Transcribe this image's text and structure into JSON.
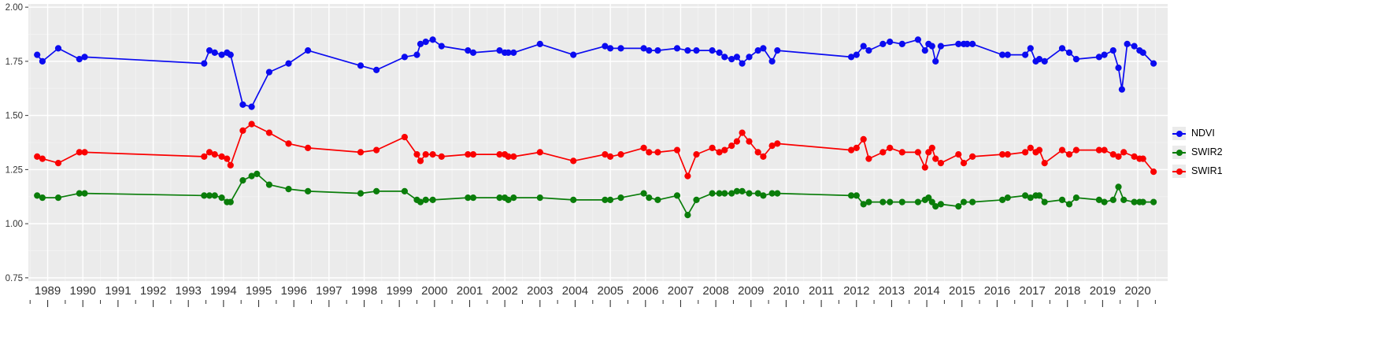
{
  "legend": {
    "entries": [
      {
        "label": "NDVI",
        "color": "#0b0bf0"
      },
      {
        "label": "SWIR2",
        "color": "#0a7d0a"
      },
      {
        "label": "SWIR1",
        "color": "#fa0000"
      }
    ]
  },
  "chart_data": {
    "type": "line",
    "title": "",
    "xlabel": "",
    "ylabel": "",
    "panel_bg": "#ebebeb",
    "grid_major_color": "#ffffff",
    "grid_minor_color": "#f4f4f4",
    "axis_text_color": "#333333",
    "tick_color": "#333333",
    "xlim": [
      1988.45,
      2020.85
    ],
    "ylim": [
      0.735,
      2.015
    ],
    "x_ticks": [
      1989,
      1990,
      1991,
      1992,
      1993,
      1994,
      1995,
      1996,
      1997,
      1998,
      1999,
      2000,
      2001,
      2002,
      2003,
      2004,
      2005,
      2006,
      2007,
      2008,
      2009,
      2010,
      2011,
      2012,
      2013,
      2014,
      2015,
      2016,
      2017,
      2018,
      2019,
      2020
    ],
    "y_ticks": {
      "values": [
        0.75,
        1.0,
        1.25,
        1.5,
        1.75,
        2.0
      ],
      "labels": [
        "0.75",
        "1.00",
        "1.25",
        "1.50",
        "1.75",
        "2.00"
      ]
    },
    "legend_position": "right",
    "series": [
      {
        "name": "NDVI",
        "color": "#0b0bf0",
        "points": [
          [
            1988.7,
            1.78
          ],
          [
            1988.85,
            1.75
          ],
          [
            1989.3,
            1.81
          ],
          [
            1989.9,
            1.76
          ],
          [
            1990.05,
            1.77
          ],
          [
            1993.45,
            1.74
          ],
          [
            1993.6,
            1.8
          ],
          [
            1993.75,
            1.79
          ],
          [
            1993.95,
            1.78
          ],
          [
            1994.1,
            1.79
          ],
          [
            1994.2,
            1.78
          ],
          [
            1994.55,
            1.55
          ],
          [
            1994.8,
            1.54
          ],
          [
            1995.3,
            1.7
          ],
          [
            1995.85,
            1.74
          ],
          [
            1996.4,
            1.8
          ],
          [
            1997.9,
            1.73
          ],
          [
            1998.35,
            1.71
          ],
          [
            1999.15,
            1.77
          ],
          [
            1999.5,
            1.78
          ],
          [
            1999.6,
            1.83
          ],
          [
            1999.75,
            1.84
          ],
          [
            1999.95,
            1.85
          ],
          [
            2000.2,
            1.82
          ],
          [
            2000.95,
            1.8
          ],
          [
            2001.1,
            1.79
          ],
          [
            2001.85,
            1.8
          ],
          [
            2002.0,
            1.79
          ],
          [
            2002.1,
            1.79
          ],
          [
            2002.25,
            1.79
          ],
          [
            2003.0,
            1.83
          ],
          [
            2003.95,
            1.78
          ],
          [
            2004.85,
            1.82
          ],
          [
            2005.0,
            1.81
          ],
          [
            2005.3,
            1.81
          ],
          [
            2005.95,
            1.81
          ],
          [
            2006.1,
            1.8
          ],
          [
            2006.35,
            1.8
          ],
          [
            2006.9,
            1.81
          ],
          [
            2007.2,
            1.8
          ],
          [
            2007.45,
            1.8
          ],
          [
            2007.9,
            1.8
          ],
          [
            2008.1,
            1.79
          ],
          [
            2008.25,
            1.77
          ],
          [
            2008.45,
            1.76
          ],
          [
            2008.6,
            1.77
          ],
          [
            2008.75,
            1.74
          ],
          [
            2008.95,
            1.77
          ],
          [
            2009.2,
            1.8
          ],
          [
            2009.35,
            1.81
          ],
          [
            2009.6,
            1.75
          ],
          [
            2009.75,
            1.8
          ],
          [
            2011.85,
            1.77
          ],
          [
            2012.0,
            1.78
          ],
          [
            2012.2,
            1.82
          ],
          [
            2012.35,
            1.8
          ],
          [
            2012.75,
            1.83
          ],
          [
            2012.95,
            1.84
          ],
          [
            2013.3,
            1.83
          ],
          [
            2013.75,
            1.85
          ],
          [
            2013.95,
            1.8
          ],
          [
            2014.05,
            1.83
          ],
          [
            2014.15,
            1.82
          ],
          [
            2014.25,
            1.75
          ],
          [
            2014.4,
            1.82
          ],
          [
            2014.9,
            1.83
          ],
          [
            2015.05,
            1.83
          ],
          [
            2015.15,
            1.83
          ],
          [
            2015.3,
            1.83
          ],
          [
            2016.15,
            1.78
          ],
          [
            2016.3,
            1.78
          ],
          [
            2016.8,
            1.78
          ],
          [
            2016.95,
            1.81
          ],
          [
            2017.1,
            1.75
          ],
          [
            2017.2,
            1.76
          ],
          [
            2017.35,
            1.75
          ],
          [
            2017.85,
            1.81
          ],
          [
            2018.05,
            1.79
          ],
          [
            2018.25,
            1.76
          ],
          [
            2018.9,
            1.77
          ],
          [
            2019.05,
            1.78
          ],
          [
            2019.3,
            1.8
          ],
          [
            2019.45,
            1.72
          ],
          [
            2019.55,
            1.62
          ],
          [
            2019.7,
            1.83
          ],
          [
            2019.9,
            1.82
          ],
          [
            2020.05,
            1.8
          ],
          [
            2020.15,
            1.79
          ],
          [
            2020.45,
            1.74
          ]
        ]
      },
      {
        "name": "SWIR2",
        "color": "#0a7d0a",
        "points": [
          [
            1988.7,
            1.13
          ],
          [
            1988.85,
            1.12
          ],
          [
            1989.3,
            1.12
          ],
          [
            1989.9,
            1.14
          ],
          [
            1990.05,
            1.14
          ],
          [
            1993.45,
            1.13
          ],
          [
            1993.6,
            1.13
          ],
          [
            1993.75,
            1.13
          ],
          [
            1993.95,
            1.12
          ],
          [
            1994.1,
            1.1
          ],
          [
            1994.2,
            1.1
          ],
          [
            1994.55,
            1.2
          ],
          [
            1994.8,
            1.22
          ],
          [
            1994.95,
            1.23
          ],
          [
            1995.3,
            1.18
          ],
          [
            1995.85,
            1.16
          ],
          [
            1996.4,
            1.15
          ],
          [
            1997.9,
            1.14
          ],
          [
            1998.35,
            1.15
          ],
          [
            1999.15,
            1.15
          ],
          [
            1999.5,
            1.11
          ],
          [
            1999.6,
            1.1
          ],
          [
            1999.75,
            1.11
          ],
          [
            1999.95,
            1.11
          ],
          [
            2000.95,
            1.12
          ],
          [
            2001.1,
            1.12
          ],
          [
            2001.85,
            1.12
          ],
          [
            2002.0,
            1.12
          ],
          [
            2002.1,
            1.11
          ],
          [
            2002.25,
            1.12
          ],
          [
            2003.0,
            1.12
          ],
          [
            2003.95,
            1.11
          ],
          [
            2004.85,
            1.11
          ],
          [
            2005.0,
            1.11
          ],
          [
            2005.3,
            1.12
          ],
          [
            2005.95,
            1.14
          ],
          [
            2006.1,
            1.12
          ],
          [
            2006.35,
            1.11
          ],
          [
            2006.9,
            1.13
          ],
          [
            2007.2,
            1.04
          ],
          [
            2007.45,
            1.11
          ],
          [
            2007.9,
            1.14
          ],
          [
            2008.1,
            1.14
          ],
          [
            2008.25,
            1.14
          ],
          [
            2008.45,
            1.14
          ],
          [
            2008.6,
            1.15
          ],
          [
            2008.75,
            1.15
          ],
          [
            2008.95,
            1.14
          ],
          [
            2009.2,
            1.14
          ],
          [
            2009.35,
            1.13
          ],
          [
            2009.6,
            1.14
          ],
          [
            2009.75,
            1.14
          ],
          [
            2011.85,
            1.13
          ],
          [
            2012.0,
            1.13
          ],
          [
            2012.2,
            1.09
          ],
          [
            2012.35,
            1.1
          ],
          [
            2012.75,
            1.1
          ],
          [
            2012.95,
            1.1
          ],
          [
            2013.3,
            1.1
          ],
          [
            2013.75,
            1.1
          ],
          [
            2013.95,
            1.11
          ],
          [
            2014.05,
            1.12
          ],
          [
            2014.15,
            1.1
          ],
          [
            2014.25,
            1.08
          ],
          [
            2014.4,
            1.09
          ],
          [
            2014.9,
            1.08
          ],
          [
            2015.05,
            1.1
          ],
          [
            2015.3,
            1.1
          ],
          [
            2016.15,
            1.11
          ],
          [
            2016.3,
            1.12
          ],
          [
            2016.8,
            1.13
          ],
          [
            2016.95,
            1.12
          ],
          [
            2017.1,
            1.13
          ],
          [
            2017.2,
            1.13
          ],
          [
            2017.35,
            1.1
          ],
          [
            2017.85,
            1.11
          ],
          [
            2018.05,
            1.09
          ],
          [
            2018.25,
            1.12
          ],
          [
            2018.9,
            1.11
          ],
          [
            2019.05,
            1.1
          ],
          [
            2019.3,
            1.11
          ],
          [
            2019.45,
            1.17
          ],
          [
            2019.6,
            1.11
          ],
          [
            2019.9,
            1.1
          ],
          [
            2020.05,
            1.1
          ],
          [
            2020.15,
            1.1
          ],
          [
            2020.45,
            1.1
          ]
        ]
      },
      {
        "name": "SWIR1",
        "color": "#fa0000",
        "points": [
          [
            1988.7,
            1.31
          ],
          [
            1988.85,
            1.3
          ],
          [
            1989.3,
            1.28
          ],
          [
            1989.9,
            1.33
          ],
          [
            1990.05,
            1.33
          ],
          [
            1993.45,
            1.31
          ],
          [
            1993.6,
            1.33
          ],
          [
            1993.75,
            1.32
          ],
          [
            1993.95,
            1.31
          ],
          [
            1994.1,
            1.3
          ],
          [
            1994.2,
            1.27
          ],
          [
            1994.55,
            1.43
          ],
          [
            1994.8,
            1.46
          ],
          [
            1995.3,
            1.42
          ],
          [
            1995.85,
            1.37
          ],
          [
            1996.4,
            1.35
          ],
          [
            1997.9,
            1.33
          ],
          [
            1998.35,
            1.34
          ],
          [
            1999.15,
            1.4
          ],
          [
            1999.5,
            1.32
          ],
          [
            1999.6,
            1.29
          ],
          [
            1999.75,
            1.32
          ],
          [
            1999.95,
            1.32
          ],
          [
            2000.2,
            1.31
          ],
          [
            2000.95,
            1.32
          ],
          [
            2001.1,
            1.32
          ],
          [
            2001.85,
            1.32
          ],
          [
            2002.0,
            1.32
          ],
          [
            2002.1,
            1.31
          ],
          [
            2002.25,
            1.31
          ],
          [
            2003.0,
            1.33
          ],
          [
            2003.95,
            1.29
          ],
          [
            2004.85,
            1.32
          ],
          [
            2005.0,
            1.31
          ],
          [
            2005.3,
            1.32
          ],
          [
            2005.95,
            1.35
          ],
          [
            2006.1,
            1.33
          ],
          [
            2006.35,
            1.33
          ],
          [
            2006.9,
            1.34
          ],
          [
            2007.2,
            1.22
          ],
          [
            2007.45,
            1.32
          ],
          [
            2007.9,
            1.35
          ],
          [
            2008.1,
            1.33
          ],
          [
            2008.25,
            1.34
          ],
          [
            2008.45,
            1.36
          ],
          [
            2008.6,
            1.38
          ],
          [
            2008.75,
            1.42
          ],
          [
            2008.95,
            1.38
          ],
          [
            2009.2,
            1.33
          ],
          [
            2009.35,
            1.31
          ],
          [
            2009.6,
            1.36
          ],
          [
            2009.75,
            1.37
          ],
          [
            2011.85,
            1.34
          ],
          [
            2012.0,
            1.35
          ],
          [
            2012.2,
            1.39
          ],
          [
            2012.35,
            1.3
          ],
          [
            2012.75,
            1.33
          ],
          [
            2012.95,
            1.35
          ],
          [
            2013.3,
            1.33
          ],
          [
            2013.75,
            1.33
          ],
          [
            2013.95,
            1.26
          ],
          [
            2014.05,
            1.33
          ],
          [
            2014.15,
            1.35
          ],
          [
            2014.25,
            1.3
          ],
          [
            2014.4,
            1.28
          ],
          [
            2014.9,
            1.32
          ],
          [
            2015.05,
            1.28
          ],
          [
            2015.3,
            1.31
          ],
          [
            2016.15,
            1.32
          ],
          [
            2016.3,
            1.32
          ],
          [
            2016.8,
            1.33
          ],
          [
            2016.95,
            1.35
          ],
          [
            2017.1,
            1.33
          ],
          [
            2017.2,
            1.34
          ],
          [
            2017.35,
            1.28
          ],
          [
            2017.85,
            1.34
          ],
          [
            2018.05,
            1.32
          ],
          [
            2018.25,
            1.34
          ],
          [
            2018.9,
            1.34
          ],
          [
            2019.05,
            1.34
          ],
          [
            2019.3,
            1.32
          ],
          [
            2019.45,
            1.31
          ],
          [
            2019.6,
            1.33
          ],
          [
            2019.9,
            1.31
          ],
          [
            2020.05,
            1.3
          ],
          [
            2020.15,
            1.3
          ],
          [
            2020.45,
            1.24
          ]
        ]
      }
    ]
  }
}
